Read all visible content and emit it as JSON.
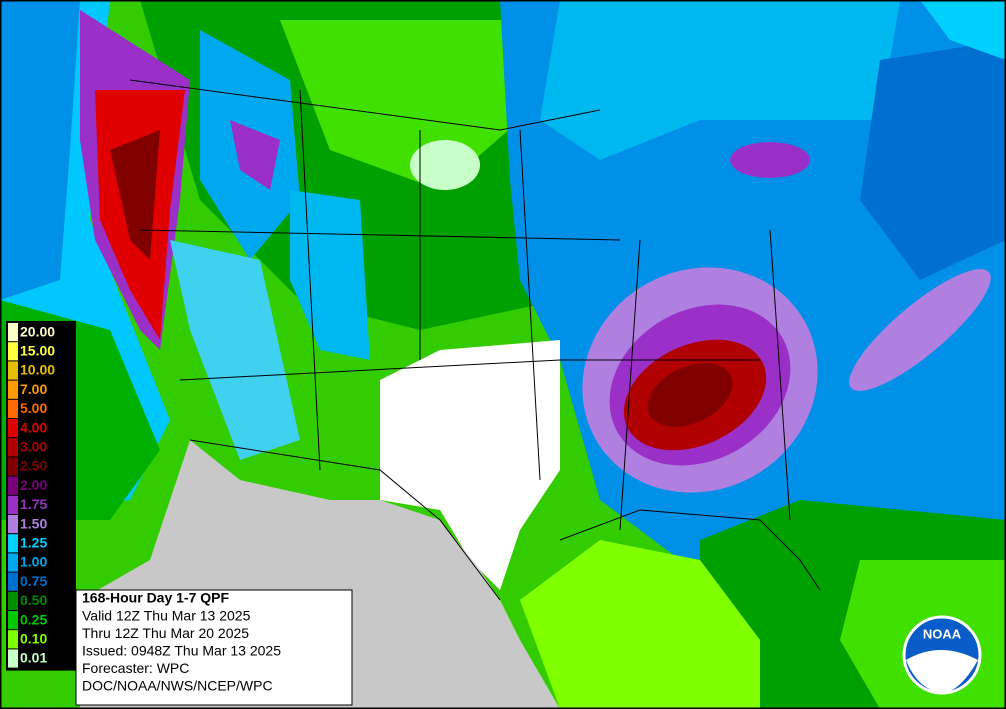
{
  "legend": {
    "items": [
      {
        "label": "20.00",
        "color": "#fdfdc8"
      },
      {
        "label": "15.00",
        "color": "#ffff40"
      },
      {
        "label": "10.00",
        "color": "#e6c000"
      },
      {
        "label": "7.00",
        "color": "#ff9a00"
      },
      {
        "label": "5.00",
        "color": "#ff6a00"
      },
      {
        "label": "4.00",
        "color": "#e00000"
      },
      {
        "label": "3.00",
        "color": "#b00000"
      },
      {
        "label": "2.50",
        "color": "#800000"
      },
      {
        "label": "2.00",
        "color": "#7a007a"
      },
      {
        "label": "1.75",
        "color": "#9a30c8"
      },
      {
        "label": "1.50",
        "color": "#b080e0"
      },
      {
        "label": "1.25",
        "color": "#00d0ff"
      },
      {
        "label": "1.00",
        "color": "#00a8f0"
      },
      {
        "label": "0.75",
        "color": "#0070d0"
      },
      {
        "label": "0.50",
        "color": "#008c00"
      },
      {
        "label": "0.25",
        "color": "#00c800"
      },
      {
        "label": "0.10",
        "color": "#80ff00"
      },
      {
        "label": "0.01",
        "color": "#c8ffc8"
      }
    ]
  },
  "info": {
    "title": "168-Hour Day 1-7 QPF",
    "lines": [
      "Valid 12Z Thu Mar 13 2025",
      "Thru 12Z Thu Mar 20 2025",
      "Issued: 0948Z Thu Mar 13 2025",
      "Forecaster: WPC",
      "DOC/NOAA/NWS/NCEP/WPC"
    ]
  },
  "logo": {
    "text": "NOAA"
  }
}
